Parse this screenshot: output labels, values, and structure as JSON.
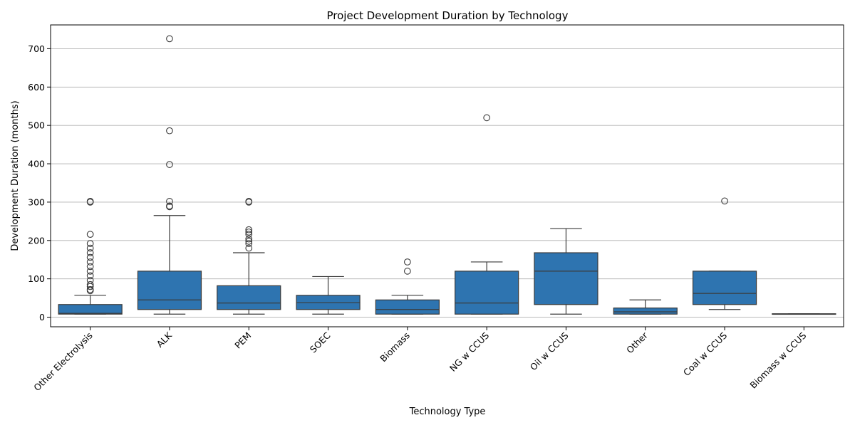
{
  "chart_data": {
    "type": "box",
    "title": "Project Development Duration by Technology",
    "xlabel": "Technology Type",
    "ylabel": "Development Duration (months)",
    "ylim": [
      -25,
      762
    ],
    "yticks": [
      0,
      100,
      200,
      300,
      400,
      500,
      600,
      700
    ],
    "grid": "horizontal",
    "box_color": "#2e74b0",
    "line_color": "#3b3b3b",
    "grid_color": "#b0b0b0",
    "categories": [
      "Other Electrolysis",
      "ALK",
      "PEM",
      "SOEC",
      "Biomass",
      "NG w CCUS",
      "Oil w CCUS",
      "Other",
      "Coal w CCUS",
      "Biomass w CCUS"
    ],
    "boxes": [
      {
        "category": "Other Electrolysis",
        "whisker_low": 8,
        "q1": 8,
        "median": 10,
        "q3": 33,
        "whisker_high": 57,
        "outliers": [
          69,
          72,
          80,
          85,
          96,
          108,
          120,
          132,
          144,
          156,
          168,
          180,
          192,
          216,
          300,
          302
        ]
      },
      {
        "category": "ALK",
        "whisker_low": 8,
        "q1": 20,
        "median": 45,
        "q3": 120,
        "whisker_high": 265,
        "outliers": [
          288,
          290,
          302,
          398,
          486,
          726
        ]
      },
      {
        "category": "PEM",
        "whisker_low": 8,
        "q1": 20,
        "median": 37,
        "q3": 82,
        "whisker_high": 168,
        "outliers": [
          180,
          192,
          198,
          204,
          216,
          222,
          228,
          300,
          302
        ]
      },
      {
        "category": "SOEC",
        "whisker_low": 8,
        "q1": 20,
        "median": 38,
        "q3": 57,
        "whisker_high": 106,
        "outliers": []
      },
      {
        "category": "Biomass",
        "whisker_low": 8,
        "q1": 8,
        "median": 20,
        "q3": 45,
        "whisker_high": 57,
        "outliers": [
          120,
          144
        ]
      },
      {
        "category": "NG w CCUS",
        "whisker_low": 8,
        "q1": 8,
        "median": 37,
        "q3": 120,
        "whisker_high": 144,
        "outliers": [
          520
        ]
      },
      {
        "category": "Oil w CCUS",
        "whisker_low": 8,
        "q1": 33,
        "median": 120,
        "q3": 168,
        "whisker_high": 231,
        "outliers": []
      },
      {
        "category": "Other",
        "whisker_low": 8,
        "q1": 8,
        "median": 14,
        "q3": 24,
        "whisker_high": 45,
        "outliers": []
      },
      {
        "category": "Coal w CCUS",
        "whisker_low": 20,
        "q1": 33,
        "median": 62,
        "q3": 120,
        "whisker_high": 120,
        "outliers": [
          303
        ]
      },
      {
        "category": "Biomass w CCUS",
        "whisker_low": 8,
        "q1": 8,
        "median": 8,
        "q3": 9,
        "whisker_high": 9,
        "outliers": []
      }
    ]
  }
}
